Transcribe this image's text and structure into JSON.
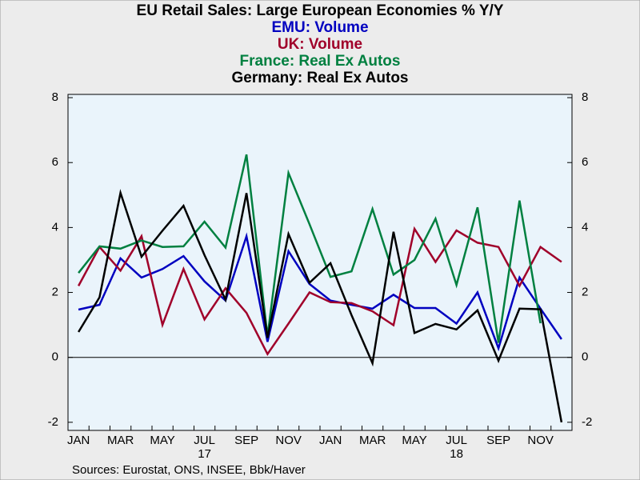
{
  "chart_data": {
    "type": "line",
    "title": "EU Retail Sales: Large European Economies % Y/Y",
    "source": "Sources:  Eurostat, ONS, INSEE, Bbk/Haver",
    "categories": [
      "JAN",
      null,
      "MAR",
      null,
      "MAY",
      null,
      "JUL",
      null,
      "SEP",
      null,
      "NOV",
      null,
      "JAN",
      null,
      "MAR",
      null,
      "MAY",
      null,
      "JUL",
      null,
      "SEP",
      null,
      "NOV",
      null
    ],
    "year_labels": [
      "17",
      "18"
    ],
    "series": [
      {
        "name": "EMU: Volume",
        "color": "#0000c0",
        "values": [
          1.47,
          1.62,
          3.05,
          2.46,
          2.72,
          3.12,
          2.34,
          1.75,
          3.73,
          0.48,
          3.27,
          2.26,
          1.75,
          1.62,
          1.5,
          1.93,
          1.52,
          1.52,
          1.04,
          2.0,
          0.28,
          2.46,
          1.5,
          0.56
        ]
      },
      {
        "name": "UK: Volume",
        "color": "#a0002a",
        "values": [
          2.2,
          3.4,
          2.67,
          3.73,
          1.0,
          2.72,
          1.17,
          2.13,
          1.37,
          0.1,
          1.04,
          2.0,
          1.7,
          1.67,
          1.42,
          0.99,
          3.96,
          2.94,
          3.91,
          3.53,
          3.4,
          2.2,
          3.4,
          2.94
        ]
      },
      {
        "name": "France: Real Ex Autos",
        "color": "#008040",
        "values": [
          2.6,
          3.42,
          3.35,
          3.6,
          3.4,
          3.42,
          4.18,
          3.38,
          6.25,
          0.65,
          5.68,
          4.1,
          2.48,
          2.65,
          4.57,
          2.55,
          3.0,
          4.27,
          2.23,
          4.62,
          0.45,
          4.83,
          1.05,
          null
        ]
      },
      {
        "name": "Germany: Real Ex Autos",
        "color": "#000000",
        "values": [
          0.78,
          1.85,
          5.07,
          3.1,
          3.9,
          4.67,
          3.15,
          1.78,
          5.06,
          0.6,
          3.8,
          2.3,
          2.9,
          1.3,
          -0.18,
          3.87,
          0.75,
          1.03,
          0.86,
          1.45,
          -0.1,
          1.5,
          1.48,
          -2.0
        ]
      }
    ],
    "ylim": [
      -2.25,
      8.1
    ],
    "yticks": [
      -2,
      0,
      2,
      4,
      6,
      8
    ]
  }
}
